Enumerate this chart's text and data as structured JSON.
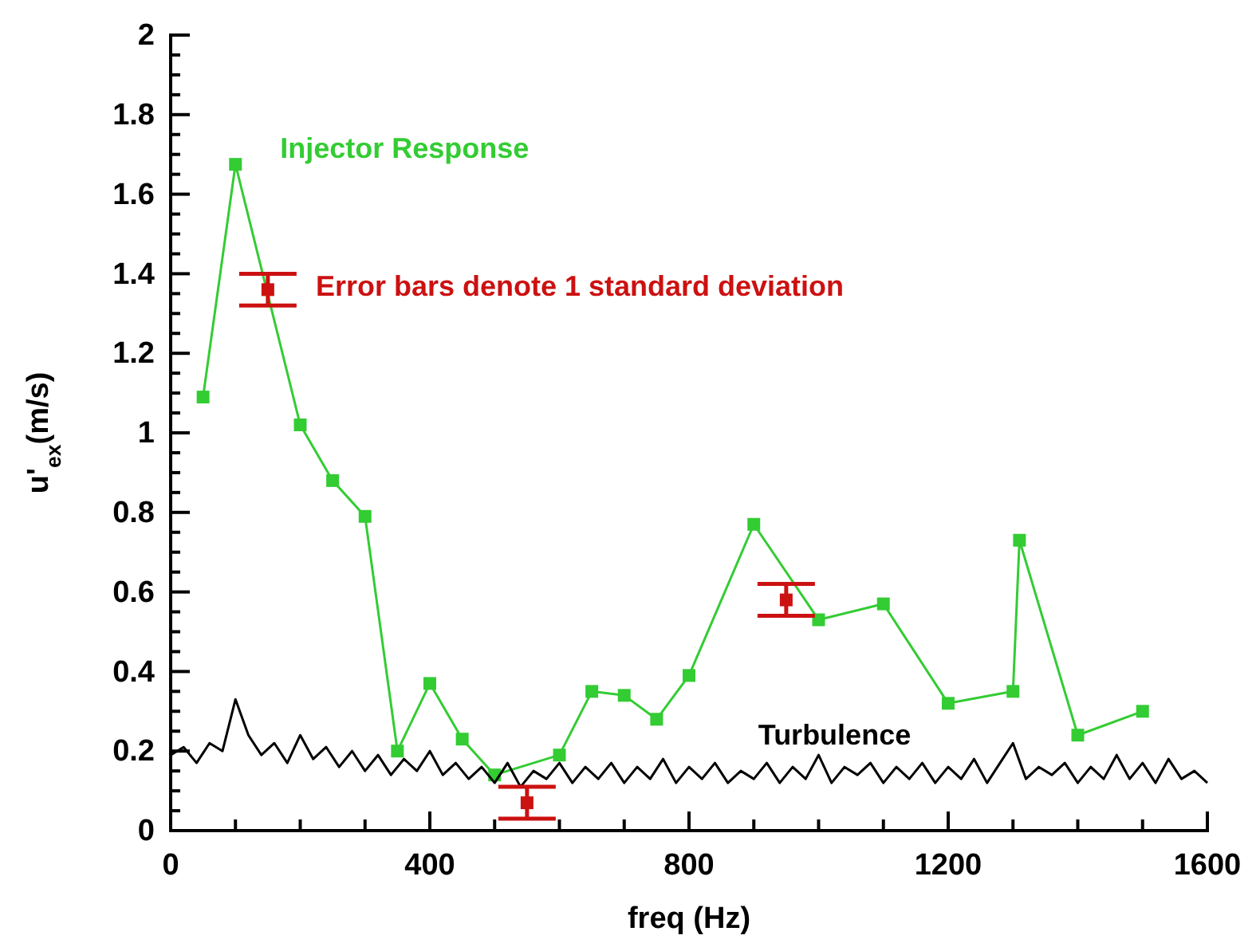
{
  "chart_data": {
    "type": "line",
    "xlabel": "freq (Hz)",
    "ylabel": "u'$_{ex}$(m/s)",
    "xlim": [
      0,
      1600
    ],
    "ylim": [
      0,
      2
    ],
    "xticks": [
      0,
      {
        "value": 100,
        "label": null
      },
      {
        "value": 200,
        "label": null
      },
      {
        "value": 300,
        "label": null
      },
      400,
      {
        "value": 500,
        "label": null
      },
      {
        "value": 600,
        "label": null
      },
      {
        "value": 700,
        "label": null
      },
      800,
      {
        "value": 900,
        "label": null
      },
      {
        "value": 1000,
        "label": null
      },
      {
        "value": 1100,
        "label": null
      },
      1200,
      {
        "value": 1300,
        "label": null
      },
      {
        "value": 1400,
        "label": null
      },
      {
        "value": 1500,
        "label": null
      },
      1600
    ],
    "yticks": [
      0,
      0.2,
      0.4,
      0.6,
      0.8,
      1,
      1.2,
      1.4,
      1.6,
      1.8,
      2
    ],
    "grid": false,
    "annotations": [
      {
        "text": "Error bars denote 1 standard deviation",
        "x": 150,
        "y": 1.36
      }
    ],
    "series": [
      {
        "name": "Injector Response",
        "color": "#33cc33",
        "marker": "square",
        "x": [
          50,
          100,
          200,
          250,
          300,
          350,
          400,
          450,
          500,
          600,
          650,
          700,
          750,
          800,
          900,
          1000,
          1100,
          1200,
          1300,
          1310,
          1400,
          1500
        ],
        "values": [
          1.09,
          1.675,
          1.02,
          0.88,
          0.79,
          0.2,
          0.37,
          0.23,
          0.14,
          0.19,
          0.35,
          0.34,
          0.28,
          0.39,
          0.77,
          0.53,
          0.57,
          0.32,
          0.35,
          0.73,
          0.24,
          0.3
        ]
      },
      {
        "name": "Turbulence",
        "color": "#000000",
        "marker": "none",
        "x": [
          0,
          20,
          40,
          60,
          80,
          100,
          120,
          140,
          160,
          180,
          200,
          220,
          240,
          260,
          280,
          300,
          320,
          340,
          360,
          380,
          400,
          420,
          440,
          460,
          480,
          500,
          520,
          540,
          560,
          580,
          600,
          620,
          640,
          660,
          680,
          700,
          720,
          740,
          760,
          780,
          800,
          820,
          840,
          860,
          880,
          900,
          920,
          940,
          960,
          980,
          1000,
          1020,
          1040,
          1060,
          1080,
          1100,
          1120,
          1140,
          1160,
          1180,
          1200,
          1220,
          1240,
          1260,
          1280,
          1300,
          1320,
          1340,
          1360,
          1380,
          1400,
          1420,
          1440,
          1460,
          1480,
          1500,
          1520,
          1540,
          1560,
          1580,
          1600
        ],
        "values": [
          0.19,
          0.21,
          0.17,
          0.22,
          0.2,
          0.33,
          0.24,
          0.19,
          0.22,
          0.17,
          0.24,
          0.18,
          0.21,
          0.16,
          0.2,
          0.15,
          0.19,
          0.14,
          0.18,
          0.15,
          0.2,
          0.14,
          0.17,
          0.13,
          0.16,
          0.12,
          0.17,
          0.11,
          0.15,
          0.13,
          0.17,
          0.12,
          0.16,
          0.13,
          0.17,
          0.12,
          0.16,
          0.13,
          0.18,
          0.12,
          0.16,
          0.13,
          0.17,
          0.12,
          0.15,
          0.13,
          0.17,
          0.12,
          0.16,
          0.13,
          0.19,
          0.12,
          0.16,
          0.14,
          0.17,
          0.12,
          0.16,
          0.13,
          0.17,
          0.12,
          0.16,
          0.13,
          0.18,
          0.12,
          0.17,
          0.22,
          0.13,
          0.16,
          0.14,
          0.17,
          0.12,
          0.16,
          0.13,
          0.19,
          0.13,
          0.17,
          0.12,
          0.18,
          0.13,
          0.15,
          0.12
        ]
      },
      {
        "type": "scatter",
        "color": "#cc1111",
        "marker": "square",
        "x": [
          150,
          550,
          950
        ],
        "values": [
          1.36,
          0.07,
          0.58
        ],
        "errors": [
          0.04,
          0.04,
          0.04
        ]
      }
    ]
  }
}
